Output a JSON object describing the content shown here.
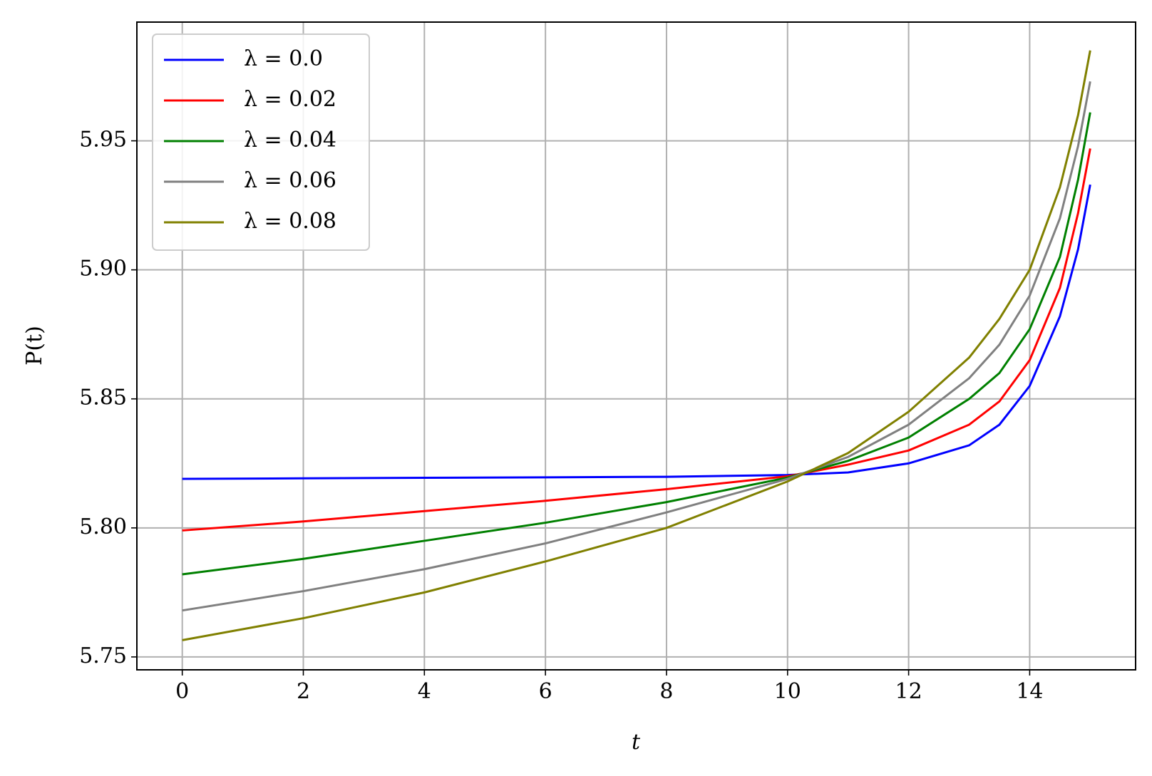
{
  "chart_data": {
    "type": "line",
    "x_label": "t",
    "y_label": "P(t)",
    "x": [
      0,
      2,
      4,
      6,
      8,
      10,
      11,
      12,
      13,
      13.5,
      14,
      14.5,
      14.8,
      15
    ],
    "series": [
      {
        "name": "λ = 0.0",
        "color": "#0000ff",
        "values": [
          5.819,
          5.8192,
          5.8194,
          5.8196,
          5.8198,
          5.8205,
          5.8215,
          5.825,
          5.832,
          5.84,
          5.855,
          5.882,
          5.908,
          5.933
        ]
      },
      {
        "name": "λ = 0.02",
        "color": "#ff0000",
        "values": [
          5.799,
          5.8025,
          5.8065,
          5.8105,
          5.815,
          5.82,
          5.8245,
          5.83,
          5.84,
          5.849,
          5.865,
          5.893,
          5.922,
          5.947
        ]
      },
      {
        "name": "λ = 0.04",
        "color": "#008000",
        "values": [
          5.782,
          5.788,
          5.795,
          5.802,
          5.81,
          5.8195,
          5.826,
          5.835,
          5.85,
          5.86,
          5.877,
          5.905,
          5.935,
          5.961
        ]
      },
      {
        "name": "λ = 0.06",
        "color": "#808080",
        "values": [
          5.768,
          5.7755,
          5.784,
          5.794,
          5.806,
          5.819,
          5.8275,
          5.84,
          5.858,
          5.871,
          5.89,
          5.92,
          5.948,
          5.973
        ]
      },
      {
        "name": "λ = 0.08",
        "color": "#808000",
        "values": [
          5.7565,
          5.765,
          5.775,
          5.787,
          5.8,
          5.818,
          5.829,
          5.845,
          5.866,
          5.881,
          5.9,
          5.932,
          5.96,
          5.985
        ]
      }
    ],
    "xlim": [
      -0.75,
      15.75
    ],
    "ylim": [
      5.745,
      5.996
    ],
    "xticks": [
      0,
      2,
      4,
      6,
      8,
      10,
      12,
      14
    ],
    "yticks": [
      5.75,
      {
        "value": 5.8,
        "label": "5.80"
      },
      5.85,
      {
        "value": 5.9,
        "label": "5.90"
      },
      5.95
    ],
    "grid": true,
    "legend": "upper left"
  }
}
